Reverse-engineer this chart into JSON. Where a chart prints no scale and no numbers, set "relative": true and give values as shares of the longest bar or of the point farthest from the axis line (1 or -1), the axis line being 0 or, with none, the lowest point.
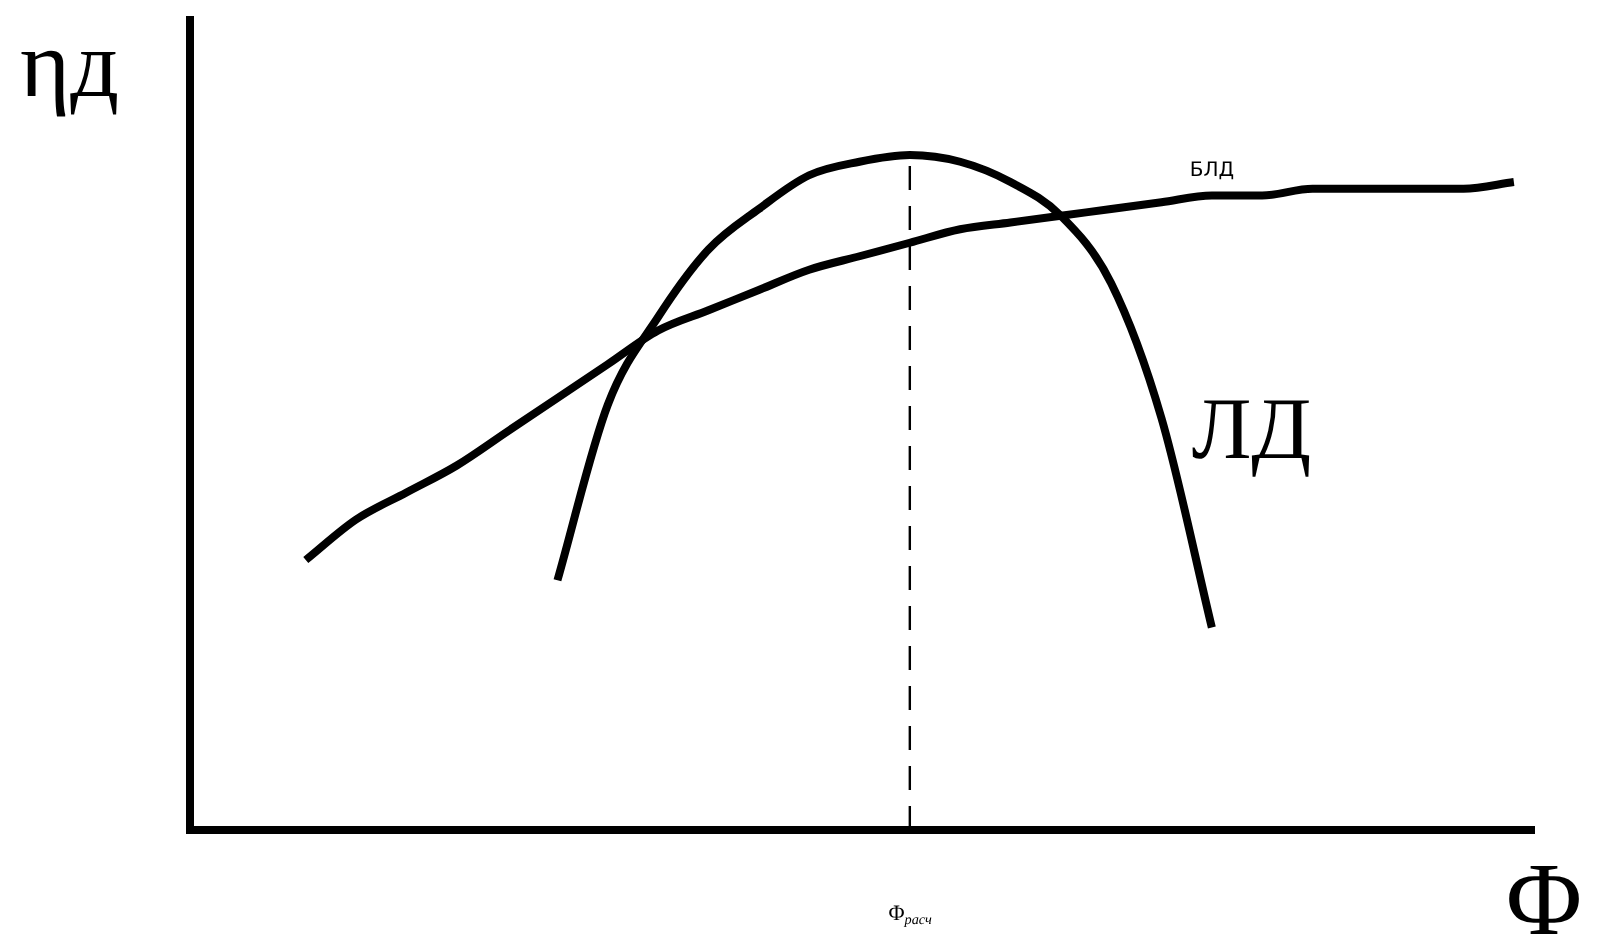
{
  "chart_data": {
    "type": "line",
    "relative": true,
    "xlabel": "Φ",
    "ylabel": "ηд",
    "grid": false,
    "legend": false,
    "marker": "none",
    "line_style": "solid",
    "categories": [
      null,
      null,
      null,
      null,
      null,
      null,
      null,
      null,
      null,
      null,
      null,
      null,
      null,
      null,
      null,
      null,
      null,
      null,
      null,
      null,
      null,
      null,
      null,
      null,
      null
    ],
    "series": [
      {
        "name": "БЛД",
        "color": "#000000",
        "values": [
          0.4,
          0.46,
          0.5,
          0.54,
          0.59,
          0.64,
          0.69,
          0.74,
          0.77,
          0.8,
          0.83,
          0.85,
          0.87,
          0.89,
          0.9,
          0.91,
          0.92,
          0.93,
          0.94,
          0.94,
          0.95,
          0.95,
          0.95,
          0.95,
          0.96
        ]
      },
      {
        "name": "ЛД",
        "color": "#000000",
        "values": [
          null,
          null,
          null,
          null,
          null,
          0.37,
          0.63,
          0.76,
          0.86,
          0.92,
          0.97,
          0.99,
          1.0,
          0.99,
          0.96,
          0.91,
          0.81,
          0.61,
          0.3,
          null,
          null,
          null,
          null,
          null,
          null
        ]
      }
    ],
    "ref_lines": [
      {
        "axis": "x",
        "label": "Φ$_{расч}$",
        "line_style": "dashed",
        "color": "#000000"
      }
    ]
  }
}
